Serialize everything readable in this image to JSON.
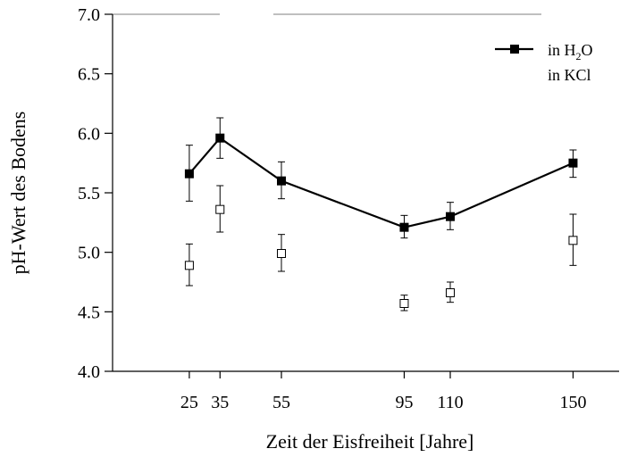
{
  "chart_data": {
    "type": "scatter",
    "title": "",
    "xlabel": "Zeit der Eisfreiheit [Jahre]",
    "ylabel": "pH-Wert des Bodens",
    "xlim": [
      0,
      165
    ],
    "ylim": [
      4.0,
      7.0
    ],
    "x_ticks": [
      25,
      35,
      55,
      95,
      110,
      150
    ],
    "x_tick_labels": [
      "25",
      "35",
      "55",
      "95",
      "110",
      "150"
    ],
    "y_ticks": [
      4.0,
      4.5,
      5.0,
      5.5,
      6.0,
      6.5,
      7.0
    ],
    "y_tick_labels": [
      "4.0",
      "4.5",
      "5.0",
      "5.5",
      "6.0",
      "6.5",
      "7.0"
    ],
    "grid": false,
    "legend_position": "top-right",
    "series": [
      {
        "name": "in H2O",
        "legend_main": "in H",
        "legend_sub": "2",
        "legend_tail": "O",
        "marker": "filled-square",
        "line": true,
        "color": "#000000",
        "x": [
          25,
          35,
          55,
          95,
          110,
          150
        ],
        "y": [
          5.66,
          5.96,
          5.6,
          5.21,
          5.3,
          5.75
        ],
        "err_low": [
          5.43,
          5.79,
          5.45,
          5.12,
          5.19,
          5.63
        ],
        "err_high": [
          5.9,
          6.13,
          5.76,
          5.31,
          5.42,
          5.86
        ]
      },
      {
        "name": "in KCl",
        "marker": "open-square",
        "line": false,
        "color": "#000000",
        "x": [
          25,
          35,
          55,
          95,
          110,
          150
        ],
        "y": [
          4.89,
          5.36,
          4.99,
          4.57,
          4.66,
          5.1
        ],
        "err_low": [
          4.72,
          5.17,
          4.84,
          4.51,
          4.58,
          4.89
        ],
        "err_high": [
          5.07,
          5.56,
          5.15,
          4.64,
          4.75,
          5.32
        ]
      }
    ]
  }
}
